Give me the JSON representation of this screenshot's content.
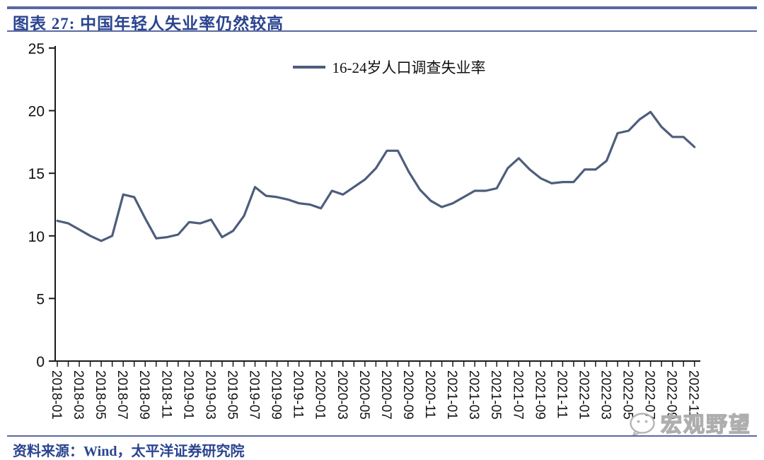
{
  "header": {
    "title": "图表 27: 中国年轻人失业率仍然较高"
  },
  "source_note": "资料来源：Wind，太平洋证券研究院",
  "watermark": {
    "text": "宏观野望",
    "icon": "wechat-icon"
  },
  "colors": {
    "line": "#4e5d7c",
    "rule": "#5a68a0",
    "title_text": "#2b4490",
    "axis": "#1a1a1a",
    "tick_label": "#111111",
    "watermark": "#aeaeae"
  },
  "chart_data": {
    "type": "line",
    "title": "",
    "xlabel": "",
    "ylabel": "",
    "ylim": [
      0,
      25
    ],
    "yticks": [
      0,
      5,
      10,
      15,
      20,
      25
    ],
    "grid": false,
    "legend_position": "top-center",
    "x_tick_label_every": 2,
    "x_labels": [
      "2018-01",
      "2018-02",
      "2018-03",
      "2018-04",
      "2018-05",
      "2018-06",
      "2018-07",
      "2018-08",
      "2018-09",
      "2018-10",
      "2018-11",
      "2018-12",
      "2019-01",
      "2019-02",
      "2019-03",
      "2019-04",
      "2019-05",
      "2019-06",
      "2019-07",
      "2019-08",
      "2019-09",
      "2019-10",
      "2019-11",
      "2019-12",
      "2020-01",
      "2020-02",
      "2020-03",
      "2020-04",
      "2020-05",
      "2020-06",
      "2020-07",
      "2020-08",
      "2020-09",
      "2020-10",
      "2020-11",
      "2020-12",
      "2021-01",
      "2021-02",
      "2021-03",
      "2021-04",
      "2021-05",
      "2021-06",
      "2021-07",
      "2021-08",
      "2021-09",
      "2021-10",
      "2021-11",
      "2021-12",
      "2022-01",
      "2022-02",
      "2022-03",
      "2022-04",
      "2022-05",
      "2022-06",
      "2022-07",
      "2022-08",
      "2022-09",
      "2022-10",
      "2022-11"
    ],
    "series": [
      {
        "name": "16-24岁人口调查失业率",
        "color": "#4e5d7c",
        "values": [
          11.2,
          11.0,
          10.5,
          10.0,
          9.6,
          10.0,
          13.3,
          13.1,
          11.4,
          9.8,
          9.9,
          10.1,
          11.1,
          11.0,
          11.3,
          9.9,
          10.4,
          11.6,
          13.9,
          13.2,
          13.1,
          12.9,
          12.6,
          12.5,
          12.2,
          13.6,
          13.3,
          13.9,
          14.5,
          15.4,
          16.8,
          16.8,
          15.1,
          13.7,
          12.8,
          12.3,
          12.6,
          13.1,
          13.6,
          13.6,
          13.8,
          15.4,
          16.2,
          15.3,
          14.6,
          14.2,
          14.3,
          14.3,
          15.3,
          15.3,
          16.0,
          18.2,
          18.4,
          19.3,
          19.9,
          18.7,
          17.9,
          17.9,
          17.1
        ]
      }
    ]
  }
}
